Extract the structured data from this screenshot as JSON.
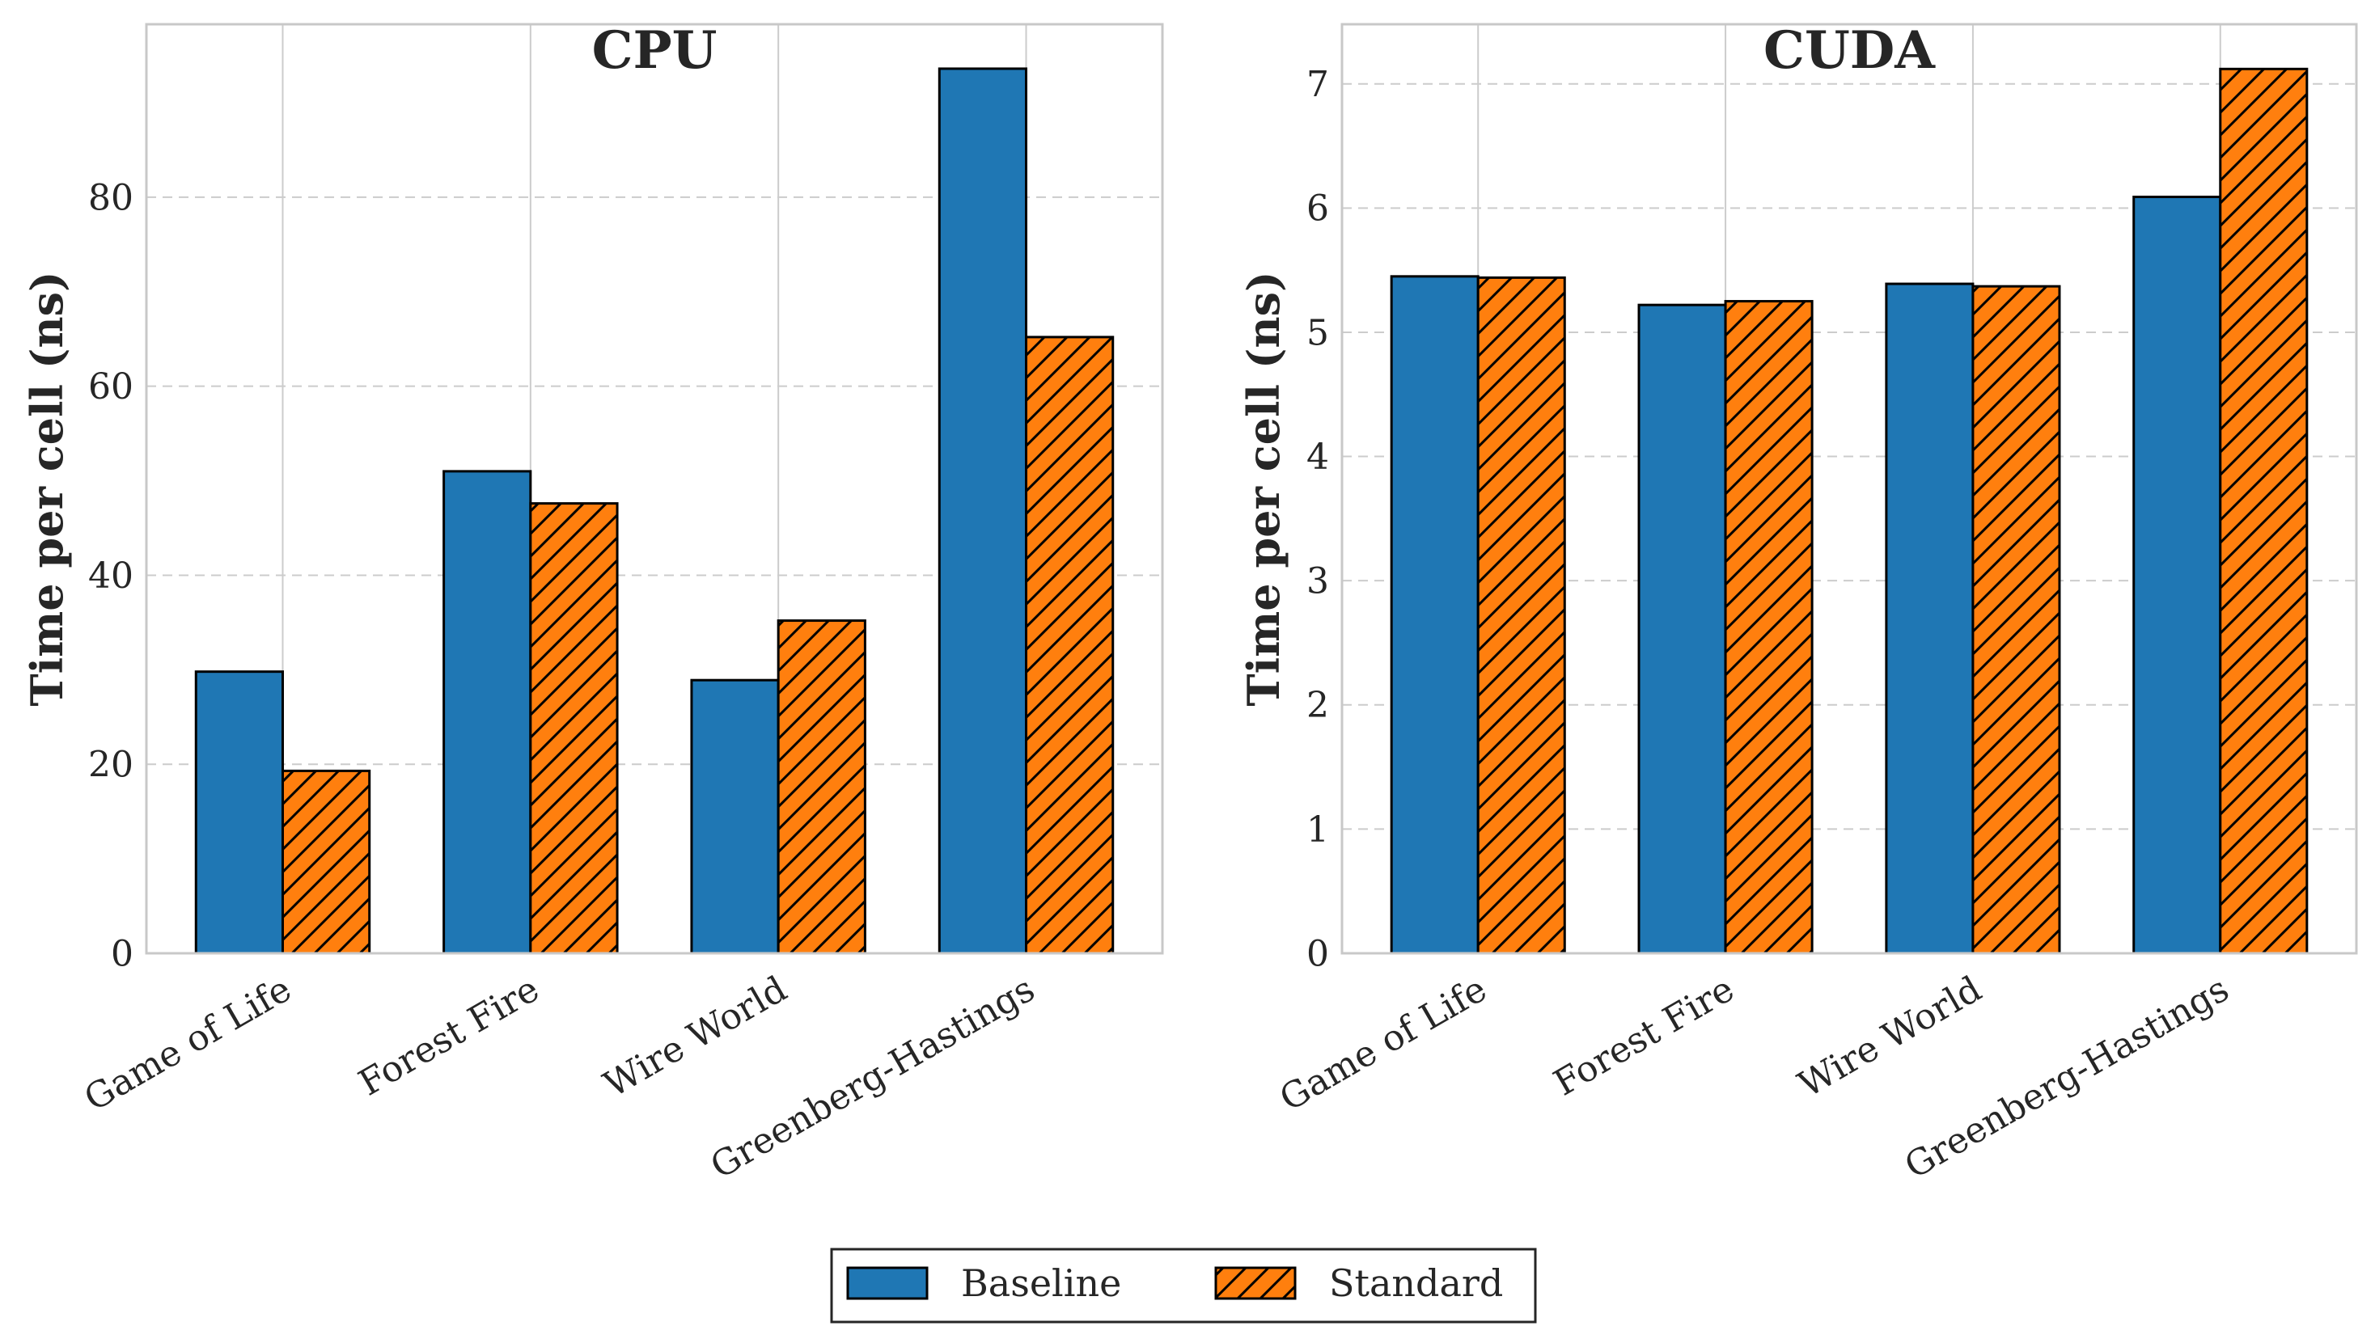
{
  "chart_data": [
    {
      "type": "bar",
      "title": "CPU",
      "xlabel": "",
      "ylabel": "Time per cell (ns)",
      "categories": [
        "Game of Life",
        "Forest Fire",
        "Wire World",
        "Greenberg-Hastings"
      ],
      "series": [
        {
          "name": "Baseline",
          "values": [
            29.8,
            51.0,
            28.9,
            93.6
          ]
        },
        {
          "name": "Standard",
          "values": [
            19.3,
            47.6,
            35.2,
            65.2
          ]
        }
      ],
      "ylim": [
        0,
        98.3
      ],
      "yticks": [
        0,
        20,
        40,
        60,
        80
      ],
      "grid": true
    },
    {
      "type": "bar",
      "title": "CUDA",
      "xlabel": "",
      "ylabel": "Time per cell (ns)",
      "categories": [
        "Game of Life",
        "Forest Fire",
        "Wire World",
        "Greenberg-Hastings"
      ],
      "series": [
        {
          "name": "Baseline",
          "values": [
            5.45,
            5.22,
            5.39,
            6.09
          ]
        },
        {
          "name": "Standard",
          "values": [
            5.44,
            5.25,
            5.37,
            7.12
          ]
        }
      ],
      "ylim": [
        0,
        7.48
      ],
      "yticks": [
        0,
        1,
        2,
        3,
        4,
        5,
        6,
        7
      ],
      "grid": true
    }
  ],
  "legend": {
    "placement": "bottom-center",
    "entries": [
      {
        "label": "Baseline",
        "color": "#1f77b4",
        "hatch": false
      },
      {
        "label": "Standard",
        "color": "#ff7f0e",
        "hatch": true
      }
    ]
  },
  "colors": {
    "baseline": "#1f77b4",
    "standard": "#ff7f0e",
    "edge": "#000000",
    "grid": "#cccccc",
    "spine": "#c8c8c8"
  }
}
